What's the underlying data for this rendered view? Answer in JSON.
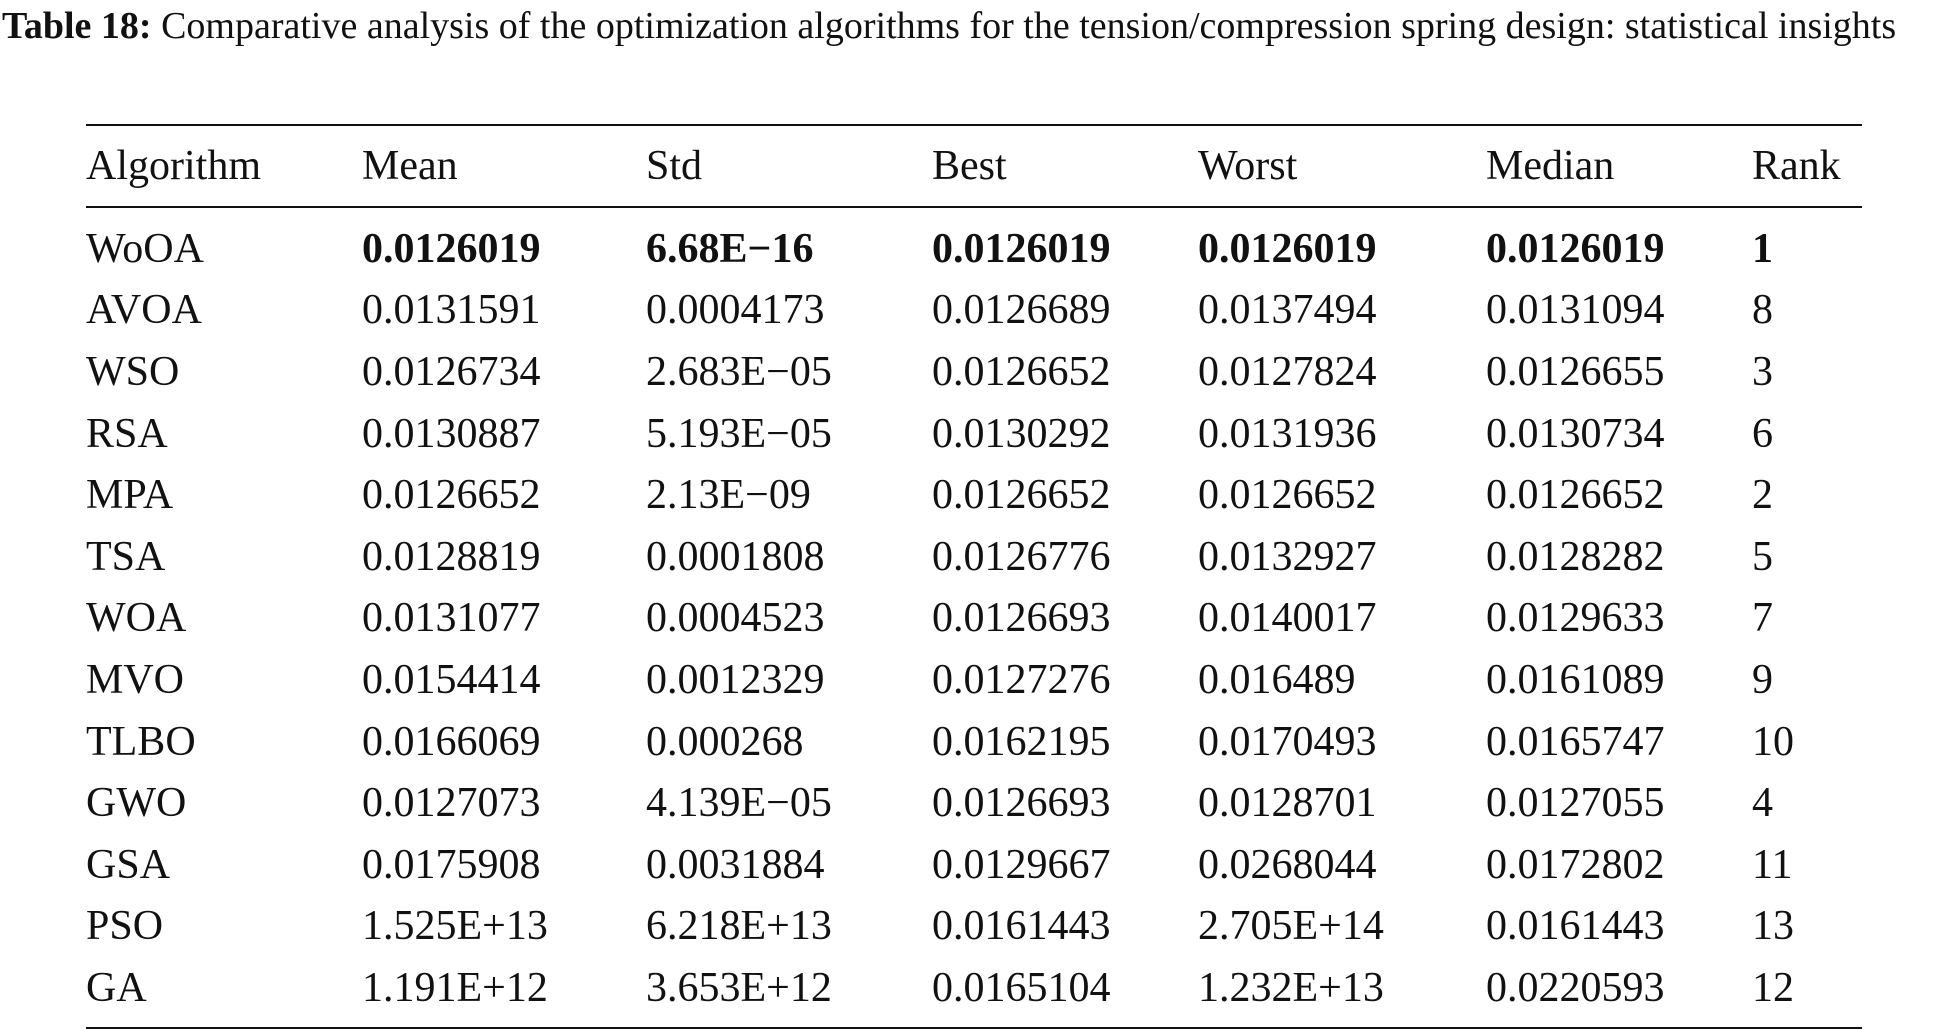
{
  "caption": {
    "label": "Table 18:",
    "text": "Comparative analysis of the optimization algorithms for the tension/compression spring design: statistical insights"
  },
  "table": {
    "headers": [
      "Algorithm",
      "Mean",
      "Std",
      "Best",
      "Worst",
      "Median",
      "Rank"
    ],
    "rows": [
      [
        "WoOA",
        "0.0126019",
        "6.68E−16",
        "0.0126019",
        "0.0126019",
        "0.0126019",
        "1"
      ],
      [
        "AVOA",
        "0.0131591",
        "0.0004173",
        "0.0126689",
        "0.0137494",
        "0.0131094",
        "8"
      ],
      [
        "WSO",
        "0.0126734",
        "2.683E−05",
        "0.0126652",
        "0.0127824",
        "0.0126655",
        "3"
      ],
      [
        "RSA",
        "0.0130887",
        "5.193E−05",
        "0.0130292",
        "0.0131936",
        "0.0130734",
        "6"
      ],
      [
        "MPA",
        "0.0126652",
        "2.13E−09",
        "0.0126652",
        "0.0126652",
        "0.0126652",
        "2"
      ],
      [
        "TSA",
        "0.0128819",
        "0.0001808",
        "0.0126776",
        "0.0132927",
        "0.0128282",
        "5"
      ],
      [
        "WOA",
        "0.0131077",
        "0.0004523",
        "0.0126693",
        "0.0140017",
        "0.0129633",
        "7"
      ],
      [
        "MVO",
        "0.0154414",
        "0.0012329",
        "0.0127276",
        "0.016489",
        "0.0161089",
        "9"
      ],
      [
        "TLBO",
        "0.0166069",
        "0.000268",
        "0.0162195",
        "0.0170493",
        "0.0165747",
        "10"
      ],
      [
        "GWO",
        "0.0127073",
        "4.139E−05",
        "0.0126693",
        "0.0128701",
        "0.0127055",
        "4"
      ],
      [
        "GSA",
        "0.0175908",
        "0.0031884",
        "0.0129667",
        "0.0268044",
        "0.0172802",
        "11"
      ],
      [
        "PSO",
        "1.525E+13",
        "6.218E+13",
        "0.0161443",
        "2.705E+14",
        "0.0161443",
        "13"
      ],
      [
        "GA",
        "1.191E+12",
        "3.653E+12",
        "0.0165104",
        "1.232E+13",
        "0.0220593",
        "12"
      ]
    ]
  }
}
